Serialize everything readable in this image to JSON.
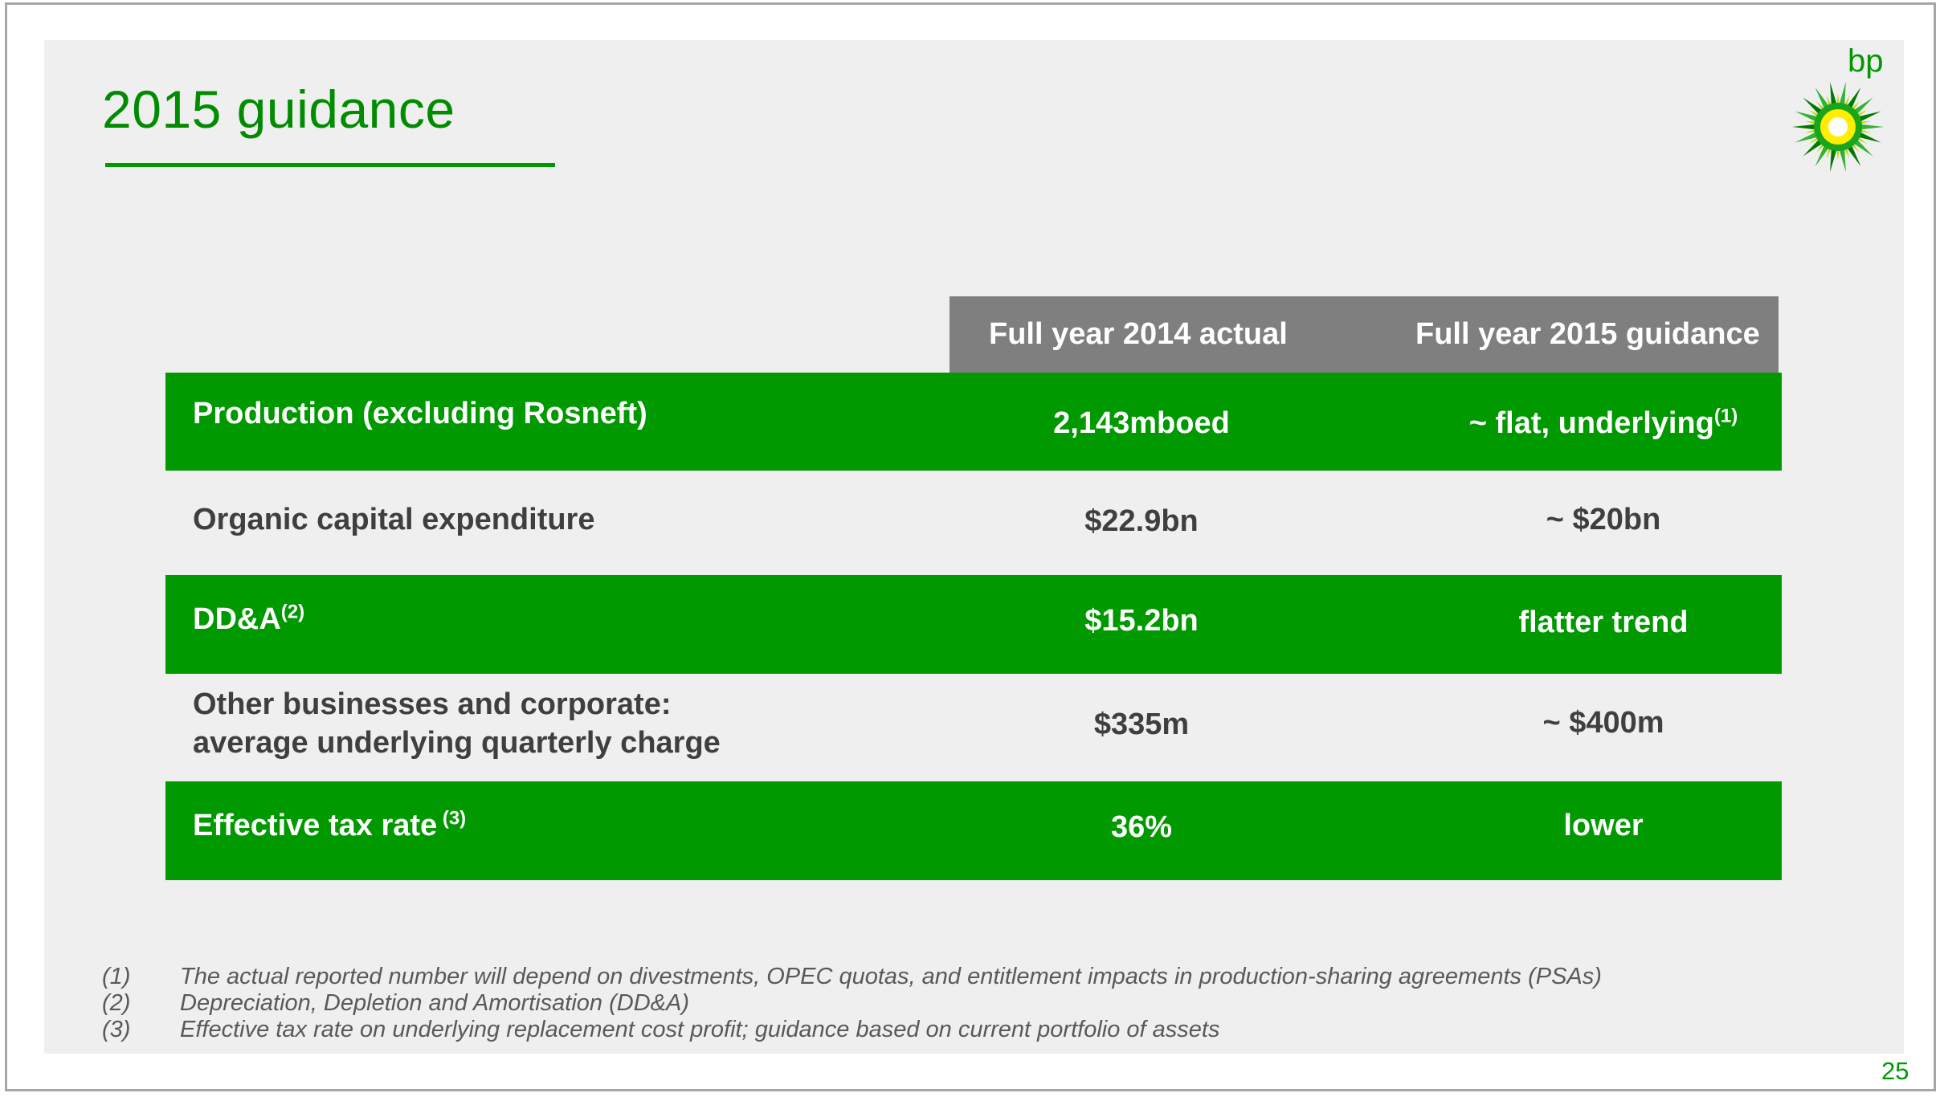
{
  "slide": {
    "title": "2015 guidance",
    "logo_text": "bp",
    "page_number": "25",
    "brand_colors": {
      "green": "#009900",
      "yellow": "#ffee00",
      "header_gray": "#7f7f7f",
      "text_gray": "#3f3f3f"
    },
    "logo_icon": "bp-helios-logo-icon"
  },
  "table": {
    "headers": [
      "Full year 2014 actual",
      "Full year 2015 guidance"
    ],
    "rows": [
      {
        "label": "Production (excluding Rosneft)",
        "label_sup": "",
        "actual": "2,143mboed",
        "guidance": "~ flat, underlying",
        "guidance_sup": "(1)"
      },
      {
        "label": "Organic capital expenditure",
        "label_sup": "",
        "actual": "$22.9bn",
        "guidance": "~ $20bn",
        "guidance_sup": ""
      },
      {
        "label": "DD&A",
        "label_sup": "(2)",
        "actual": "$15.2bn",
        "guidance": "flatter trend",
        "guidance_sup": ""
      },
      {
        "label_line1": "Other businesses and corporate:",
        "label_line2": "average underlying quarterly charge",
        "actual": "$335m",
        "guidance": "~ $400m",
        "guidance_sup": ""
      },
      {
        "label": "Effective tax rate",
        "label_sup": " (3)",
        "actual": "36%",
        "guidance": "lower",
        "guidance_sup": ""
      }
    ]
  },
  "footnotes": [
    {
      "num": "(1)",
      "text": "The actual reported number will depend on divestments, OPEC quotas, and entitlement impacts in production-sharing agreements (PSAs)"
    },
    {
      "num": "(2)",
      "text": "Depreciation, Depletion and Amortisation (DD&A)"
    },
    {
      "num": "(3)",
      "text": "Effective tax rate on underlying replacement cost profit; guidance based on current portfolio of assets"
    }
  ]
}
